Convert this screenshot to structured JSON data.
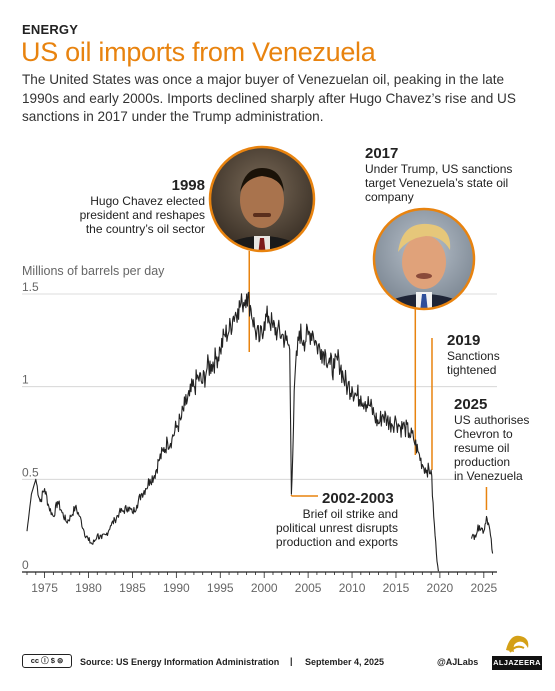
{
  "header": {
    "kicker": "ENERGY",
    "title": "US oil imports from Venezuela",
    "subtitle": "The United States was once a major buyer of Venezuelan oil, peaking in the late 1990s and early 2000s. Imports declined sharply after Hugo Chavez’s rise and US sanctions in 2017 under the Trump administration."
  },
  "chart_data": {
    "type": "line",
    "ylabel": "Millions of barrels per day",
    "ylim": [
      0,
      1.5
    ],
    "yticks": [
      "0",
      "0.5",
      "1",
      "1.5"
    ],
    "xlim": [
      1973,
      2026.5
    ],
    "xticks": [
      "1975",
      "1980",
      "1985",
      "1990",
      "1995",
      "2000",
      "2005",
      "2010",
      "2015",
      "2020",
      "2025"
    ],
    "grid": true,
    "line_color": "#222222",
    "accent_color": "#e8830f",
    "series": [
      {
        "x": [
          1973.0,
          1973.5,
          1974.0,
          1974.5,
          1975.0,
          1975.5,
          1976.0,
          1976.5,
          1977.0,
          1977.5,
          1978.0,
          1978.5,
          1979.0,
          1979.5,
          1980.0,
          1980.5,
          1981.0,
          1981.5,
          1982.0,
          1982.5,
          1983.0,
          1983.5,
          1984.0,
          1984.5,
          1985.0,
          1985.5,
          1986.0,
          1986.5,
          1987.0,
          1987.5,
          1988.0,
          1988.5,
          1989.0,
          1989.5,
          1990.0,
          1990.5,
          1991.0,
          1991.5,
          1992.0,
          1992.5,
          1993.0,
          1993.5,
          1994.0,
          1994.5,
          1995.0,
          1995.5,
          1996.0,
          1996.5,
          1997.0,
          1997.5,
          1998.0,
          1998.5,
          1999.0,
          1999.5,
          2000.0,
          2000.5,
          2001.0,
          2001.5,
          2002.0,
          2002.5,
          2002.9,
          2003.1,
          2003.5,
          2004.0,
          2004.5,
          2005.0,
          2005.5,
          2006.0,
          2006.5,
          2007.0,
          2007.5,
          2008.0,
          2008.5,
          2009.0,
          2009.5,
          2010.0,
          2010.5,
          2011.0,
          2011.5,
          2012.0,
          2012.5,
          2013.0,
          2013.5,
          2014.0,
          2014.5,
          2015.0,
          2015.5,
          2016.0,
          2016.5,
          2017.0,
          2017.5,
          2018.0,
          2018.5,
          2019.0,
          2019.3,
          2019.6,
          2019.9,
          2023.6,
          2024.0,
          2024.5,
          2025.0,
          2025.3,
          2025.6,
          2026.0
        ],
        "y": [
          0.22,
          0.42,
          0.5,
          0.38,
          0.45,
          0.35,
          0.3,
          0.38,
          0.32,
          0.27,
          0.3,
          0.35,
          0.3,
          0.22,
          0.17,
          0.15,
          0.2,
          0.18,
          0.2,
          0.25,
          0.28,
          0.32,
          0.33,
          0.35,
          0.32,
          0.36,
          0.42,
          0.45,
          0.5,
          0.52,
          0.6,
          0.65,
          0.7,
          0.72,
          0.78,
          0.82,
          0.9,
          0.95,
          1.0,
          1.05,
          1.02,
          1.1,
          1.12,
          1.15,
          1.2,
          1.28,
          1.3,
          1.38,
          1.42,
          1.45,
          1.5,
          1.42,
          1.3,
          1.25,
          1.35,
          1.38,
          1.32,
          1.3,
          1.28,
          1.25,
          1.2,
          0.42,
          1.05,
          1.3,
          1.25,
          1.28,
          1.3,
          1.22,
          1.2,
          1.18,
          1.12,
          1.1,
          1.15,
          1.05,
          1.0,
          1.0,
          0.95,
          0.95,
          0.92,
          0.9,
          0.85,
          0.8,
          0.85,
          0.82,
          0.8,
          0.82,
          0.78,
          0.78,
          0.75,
          0.72,
          0.65,
          0.58,
          0.55,
          0.55,
          0.3,
          0.1,
          0.0,
          0.18,
          0.2,
          0.25,
          0.22,
          0.3,
          0.25,
          0.1
        ]
      }
    ],
    "annotations": [
      {
        "year": "1998",
        "text": [
          "Hugo Chavez elected",
          "president and reshapes",
          "the country’s oil sector"
        ],
        "photo": "hugo-chavez-portrait"
      },
      {
        "year": "2017",
        "text": [
          "Under Trump, US sanctions",
          "target Venezuela’s state oil",
          "company"
        ],
        "photo": "donald-trump-portrait"
      },
      {
        "year": "2019",
        "text": [
          "Sanctions",
          "tightened"
        ]
      },
      {
        "year": "2025",
        "text": [
          "US authorises",
          "Chevron to",
          "resume oil",
          "production",
          "in Venezuela"
        ]
      },
      {
        "year": "2002-2003",
        "text": [
          "Brief oil strike and",
          "political unrest disrupts",
          "production and exports"
        ]
      }
    ]
  },
  "footer": {
    "license": "cc ⓘ $ ⊜",
    "source": "Source: US Energy Information Administration",
    "separator": "|",
    "date": "September 4, 2025",
    "handle": "@AJLabs",
    "brand": "ALJAZEERA"
  }
}
